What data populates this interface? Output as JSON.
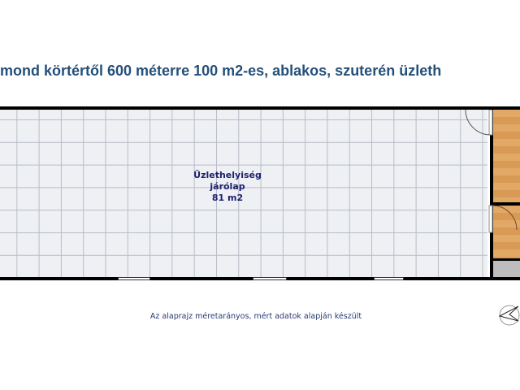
{
  "title": "mond körtértől 600 méterre 100 m2-es, ablakos, szuterén üzleth",
  "room": {
    "name": "Üzlethelyiség",
    "floor": "járólap",
    "area": "81 m2"
  },
  "note": "Az alaprajz méretarányos, mért adatok alapján készült",
  "colors": {
    "title": "#24507a",
    "wall": "#000000",
    "tile": "#eef0f4",
    "wood": "#e2a866"
  },
  "icons": [
    "compass-icon",
    "door-icon"
  ]
}
